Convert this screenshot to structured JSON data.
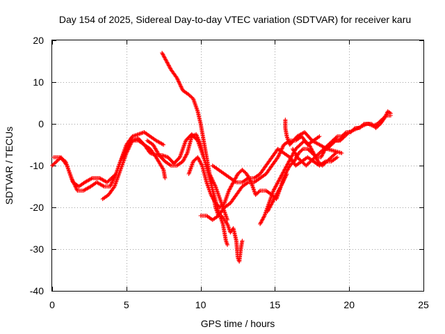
{
  "chart_data": {
    "type": "scatter",
    "title": "Day 154 of 2025, Sidereal Day-to-day VTEC variation (SDTVAR) for receiver karu",
    "xlabel": "GPS time / hours",
    "ylabel": "SDTVAR / TECUs",
    "xlim": [
      0,
      25
    ],
    "ylim": [
      -40,
      20
    ],
    "xticks": [
      0,
      5,
      10,
      15,
      20,
      25
    ],
    "yticks": [
      -40,
      -30,
      -20,
      -10,
      0,
      10,
      20
    ],
    "grid": true,
    "marker": "plus",
    "color": "#ff0000",
    "series": [
      {
        "points": [
          [
            0.0,
            -10
          ],
          [
            0.3,
            -9
          ],
          [
            0.6,
            -8
          ],
          [
            1.0,
            -10
          ],
          [
            1.4,
            -14
          ],
          [
            1.8,
            -15
          ],
          [
            2.2,
            -14
          ],
          [
            2.7,
            -13
          ],
          [
            3.2,
            -13
          ],
          [
            3.7,
            -14
          ],
          [
            4.0,
            -13
          ],
          [
            4.3,
            -12
          ],
          [
            4.7,
            -8
          ],
          [
            5.0,
            -5
          ],
          [
            5.4,
            -3
          ],
          [
            5.8,
            -2.5
          ],
          [
            6.2,
            -2
          ],
          [
            6.6,
            -3
          ],
          [
            7.0,
            -4
          ],
          [
            7.5,
            -5
          ]
        ]
      },
      {
        "points": [
          [
            0.1,
            -8
          ],
          [
            0.5,
            -8
          ],
          [
            0.9,
            -9
          ],
          [
            1.3,
            -13
          ],
          [
            1.7,
            -16
          ],
          [
            2.1,
            -16
          ],
          [
            2.6,
            -15
          ],
          [
            3.0,
            -14
          ],
          [
            3.5,
            -15
          ],
          [
            3.9,
            -15
          ],
          [
            4.3,
            -12
          ],
          [
            4.6,
            -9
          ],
          [
            5.0,
            -6
          ],
          [
            5.4,
            -4
          ],
          [
            5.8,
            -3.5
          ],
          [
            6.2,
            -5
          ],
          [
            6.6,
            -6
          ],
          [
            7.0,
            -8
          ],
          [
            7.5,
            -11
          ],
          [
            7.6,
            -13
          ]
        ]
      },
      {
        "points": [
          [
            3.4,
            -18
          ],
          [
            3.8,
            -17
          ],
          [
            4.2,
            -15
          ],
          [
            4.6,
            -11
          ],
          [
            5.0,
            -7
          ],
          [
            5.4,
            -4
          ],
          [
            5.8,
            -4
          ],
          [
            6.2,
            -5
          ],
          [
            6.6,
            -7
          ],
          [
            7.0,
            -7.5
          ],
          [
            7.4,
            -7.5
          ],
          [
            7.8,
            -8
          ],
          [
            8.2,
            -9.5
          ],
          [
            8.6,
            -8
          ],
          [
            9.0,
            -4
          ],
          [
            9.4,
            -2.5
          ],
          [
            9.8,
            -4
          ],
          [
            10.2,
            -8
          ],
          [
            10.6,
            -12
          ],
          [
            11.0,
            -15
          ],
          [
            11.4,
            -19
          ],
          [
            11.8,
            -23
          ]
        ]
      },
      {
        "points": [
          [
            6.4,
            -4
          ],
          [
            6.8,
            -5
          ],
          [
            7.2,
            -7.5
          ],
          [
            7.6,
            -9
          ],
          [
            8.0,
            -10
          ],
          [
            8.4,
            -10
          ],
          [
            8.8,
            -9
          ],
          [
            9.1,
            -7
          ],
          [
            9.4,
            -3
          ],
          [
            9.7,
            -2.5
          ],
          [
            10.0,
            -5
          ],
          [
            10.3,
            -9
          ],
          [
            10.6,
            -13
          ],
          [
            10.9,
            -17
          ],
          [
            11.2,
            -21
          ],
          [
            11.5,
            -24
          ],
          [
            11.7,
            -28
          ],
          [
            11.8,
            -29
          ]
        ]
      },
      {
        "points": [
          [
            7.4,
            17
          ],
          [
            7.7,
            15
          ],
          [
            8.0,
            13
          ],
          [
            8.4,
            11
          ],
          [
            8.8,
            8
          ],
          [
            9.2,
            7
          ],
          [
            9.5,
            6
          ],
          [
            9.8,
            3
          ],
          [
            10.0,
            0
          ],
          [
            10.2,
            -4
          ],
          [
            10.4,
            -8
          ],
          [
            10.6,
            -12
          ],
          [
            10.8,
            -16
          ],
          [
            11.0,
            -20
          ],
          [
            11.2,
            -22
          ],
          [
            11.4,
            -22
          ],
          [
            11.6,
            -23
          ],
          [
            11.8,
            -24
          ],
          [
            12.0,
            -26
          ],
          [
            12.2,
            -25
          ],
          [
            12.4,
            -28
          ],
          [
            12.5,
            -32
          ],
          [
            12.6,
            -33
          ],
          [
            12.7,
            -30
          ],
          [
            12.8,
            -28
          ]
        ]
      },
      {
        "points": [
          [
            9.2,
            -12
          ],
          [
            9.5,
            -9
          ],
          [
            9.8,
            -8
          ],
          [
            10.1,
            -10
          ],
          [
            10.4,
            -14
          ],
          [
            10.7,
            -17
          ],
          [
            11.0,
            -19
          ],
          [
            11.3,
            -20
          ],
          [
            11.6,
            -19
          ],
          [
            11.9,
            -16
          ],
          [
            12.2,
            -14
          ],
          [
            12.5,
            -12
          ],
          [
            12.8,
            -11
          ],
          [
            13.1,
            -12
          ],
          [
            13.4,
            -14
          ],
          [
            13.7,
            -17
          ],
          [
            14.0,
            -16
          ],
          [
            14.4,
            -16
          ],
          [
            14.8,
            -17
          ],
          [
            15.1,
            -18
          ],
          [
            15.4,
            -15
          ],
          [
            15.8,
            -12
          ]
        ]
      },
      {
        "points": [
          [
            10.0,
            -22
          ],
          [
            10.4,
            -22
          ],
          [
            10.8,
            -23
          ],
          [
            11.2,
            -22
          ],
          [
            11.6,
            -20
          ],
          [
            12.0,
            -19
          ],
          [
            12.4,
            -17
          ],
          [
            12.8,
            -15
          ],
          [
            13.2,
            -14
          ],
          [
            13.6,
            -14
          ],
          [
            14.0,
            -13
          ],
          [
            14.4,
            -12
          ],
          [
            14.8,
            -10
          ],
          [
            15.2,
            -8
          ],
          [
            15.6,
            -5
          ],
          [
            16.0,
            -4
          ],
          [
            16.4,
            -4
          ],
          [
            16.8,
            -3
          ],
          [
            17.2,
            -5
          ],
          [
            17.6,
            -4
          ],
          [
            18.0,
            -3
          ]
        ]
      },
      {
        "points": [
          [
            10.8,
            -10
          ],
          [
            11.2,
            -11
          ],
          [
            11.6,
            -12
          ],
          [
            12.0,
            -13
          ],
          [
            12.4,
            -14
          ],
          [
            12.8,
            -14
          ],
          [
            13.2,
            -13
          ],
          [
            13.6,
            -13
          ],
          [
            14.0,
            -12
          ],
          [
            14.4,
            -10
          ],
          [
            14.8,
            -8
          ],
          [
            15.2,
            -6
          ],
          [
            15.6,
            -7
          ],
          [
            16.0,
            -8
          ],
          [
            16.4,
            -10
          ],
          [
            16.8,
            -9
          ],
          [
            17.2,
            -8
          ],
          [
            17.6,
            -9
          ],
          [
            18.0,
            -10
          ],
          [
            18.4,
            -9
          ],
          [
            18.8,
            -9
          ],
          [
            19.2,
            -8
          ]
        ]
      },
      {
        "points": [
          [
            14.0,
            -24
          ],
          [
            14.3,
            -22
          ],
          [
            14.6,
            -19
          ],
          [
            14.9,
            -16
          ],
          [
            15.2,
            -14
          ],
          [
            15.5,
            -12
          ],
          [
            15.8,
            -10
          ],
          [
            16.1,
            -8
          ],
          [
            16.4,
            -6
          ],
          [
            16.7,
            -5
          ],
          [
            17.0,
            -4
          ],
          [
            17.3,
            -5
          ],
          [
            17.6,
            -7
          ],
          [
            17.9,
            -9
          ],
          [
            18.2,
            -10
          ],
          [
            18.5,
            -9
          ],
          [
            18.8,
            -8
          ],
          [
            19.1,
            -7
          ]
        ]
      },
      {
        "points": [
          [
            14.5,
            -21
          ],
          [
            14.8,
            -19
          ],
          [
            15.1,
            -17
          ],
          [
            15.4,
            -15
          ],
          [
            15.7,
            -12
          ],
          [
            16.0,
            -10
          ],
          [
            16.3,
            -9
          ],
          [
            16.6,
            -7
          ],
          [
            16.9,
            -6
          ],
          [
            17.2,
            -6
          ],
          [
            17.5,
            -7
          ],
          [
            17.8,
            -8
          ],
          [
            18.1,
            -8
          ],
          [
            18.4,
            -6
          ],
          [
            18.7,
            -5
          ],
          [
            19.0,
            -4
          ],
          [
            19.3,
            -4
          ],
          [
            19.6,
            -3
          ]
        ]
      },
      {
        "points": [
          [
            16.2,
            -6
          ],
          [
            16.5,
            -8
          ],
          [
            16.8,
            -9
          ],
          [
            17.1,
            -10
          ],
          [
            17.4,
            -9
          ],
          [
            17.7,
            -8
          ],
          [
            18.0,
            -7
          ],
          [
            18.3,
            -6
          ],
          [
            18.6,
            -5
          ],
          [
            18.9,
            -4
          ],
          [
            19.2,
            -3
          ],
          [
            19.5,
            -3
          ],
          [
            19.8,
            -2
          ],
          [
            20.1,
            -2
          ],
          [
            20.4,
            -1
          ],
          [
            20.7,
            -1
          ],
          [
            21.0,
            0
          ],
          [
            21.3,
            0
          ],
          [
            21.6,
            -0.5
          ],
          [
            21.9,
            0
          ],
          [
            22.2,
            1
          ],
          [
            22.5,
            2
          ],
          [
            22.8,
            2
          ]
        ]
      },
      {
        "points": [
          [
            18.5,
            -6
          ],
          [
            18.8,
            -5
          ],
          [
            19.1,
            -4
          ],
          [
            19.4,
            -4
          ],
          [
            19.7,
            -3
          ],
          [
            20.0,
            -2
          ],
          [
            20.3,
            -1.5
          ],
          [
            20.6,
            -1
          ],
          [
            20.9,
            -0.5
          ],
          [
            21.2,
            0
          ],
          [
            21.5,
            0
          ],
          [
            21.8,
            -1
          ],
          [
            22.1,
            0
          ],
          [
            22.4,
            1.5
          ],
          [
            22.6,
            3
          ],
          [
            22.8,
            2.5
          ]
        ]
      },
      {
        "points": [
          [
            15.7,
            1
          ],
          [
            15.7,
            -1
          ],
          [
            15.8,
            -3
          ],
          [
            16.0,
            -5
          ],
          [
            16.5,
            -3
          ],
          [
            17.0,
            -2
          ],
          [
            17.5,
            -4
          ],
          [
            18.0,
            -5
          ],
          [
            18.5,
            -6
          ],
          [
            19.0,
            -6.5
          ],
          [
            19.5,
            -7
          ]
        ]
      }
    ]
  }
}
